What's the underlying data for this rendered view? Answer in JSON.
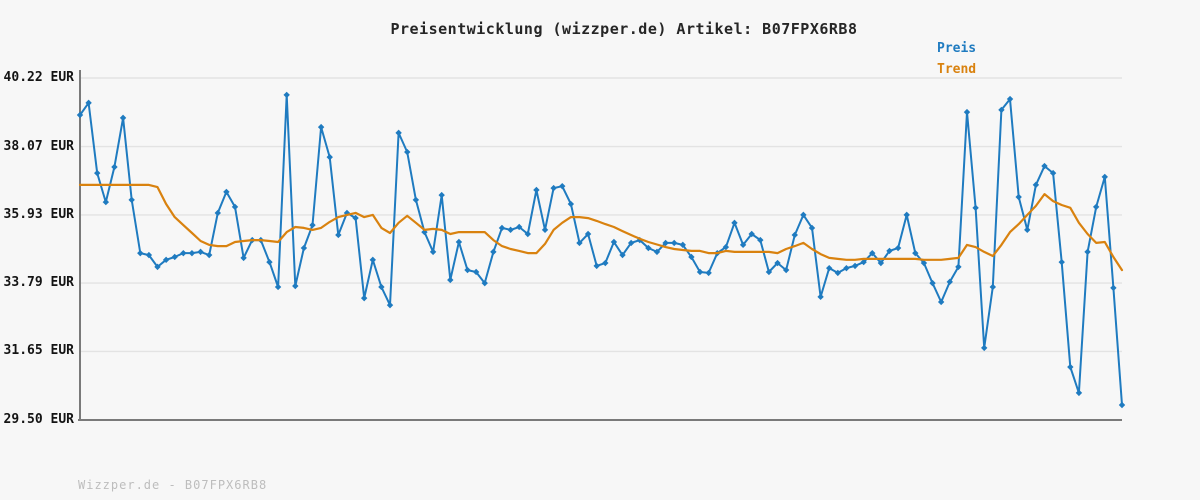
{
  "page": {
    "footer": "Wizzper.de - B07FPX6RB8"
  },
  "colors": {
    "background": "#f7f7f7",
    "price_blue": "#1f7bc0",
    "trend_orange": "#d9820f",
    "grid": "#e3e3e3",
    "axis": "#7a7a7a",
    "title_text": "#262626",
    "tick_text": "#141414",
    "footer_text": "#bdbdbd"
  },
  "chart_data": {
    "type": "line",
    "title": "Preisentwicklung (wizzper.de) Artikel: B07FPX6RB8",
    "xlabel": "",
    "ylabel": "",
    "y_unit": "EUR",
    "ylim": [
      29.5,
      40.22
    ],
    "y_tick_values": [
      40.22,
      38.07,
      35.93,
      33.79,
      31.65,
      29.5
    ],
    "y_tick_labels": [
      "40.22 EUR",
      "38.07 EUR",
      "35.93 EUR",
      "33.79 EUR",
      "31.65 EUR",
      "29.50 EUR"
    ],
    "x_tick_labels": [],
    "grid": true,
    "legend_position": "top-right",
    "series": [
      {
        "name": "Preis",
        "color": "#1f7bc0",
        "marker": "diamond",
        "values": [
          39.06,
          39.44,
          37.24,
          36.33,
          37.43,
          38.97,
          36.4,
          34.73,
          34.67,
          34.3,
          34.52,
          34.61,
          34.73,
          34.73,
          34.77,
          34.67,
          35.99,
          36.65,
          36.18,
          34.58,
          35.14,
          35.14,
          34.45,
          33.67,
          39.69,
          33.7,
          34.89,
          35.61,
          38.68,
          37.74,
          35.3,
          35.99,
          35.83,
          33.32,
          34.52,
          33.67,
          33.1,
          38.5,
          37.9,
          36.4,
          35.39,
          34.77,
          36.55,
          33.89,
          35.08,
          34.2,
          34.14,
          33.79,
          34.77,
          35.52,
          35.46,
          35.55,
          35.33,
          36.71,
          35.46,
          36.77,
          36.83,
          36.27,
          35.05,
          35.33,
          34.33,
          34.42,
          35.08,
          34.67,
          35.05,
          35.14,
          34.89,
          34.77,
          35.05,
          35.05,
          34.99,
          34.61,
          34.14,
          34.11,
          34.73,
          34.92,
          35.68,
          34.99,
          35.33,
          35.14,
          34.14,
          34.42,
          34.2,
          35.3,
          35.93,
          35.52,
          33.36,
          34.26,
          34.11,
          34.26,
          34.33,
          34.45,
          34.73,
          34.42,
          34.8,
          34.89,
          35.93,
          34.73,
          34.42,
          33.79,
          33.2,
          33.83,
          34.3,
          39.15,
          36.15,
          31.76,
          33.67,
          39.22,
          39.56,
          36.49,
          35.46,
          36.87,
          37.46,
          37.24,
          34.45,
          31.16,
          30.35,
          34.77,
          36.18,
          37.12,
          33.64,
          29.97
        ]
      },
      {
        "name": "Trend",
        "color": "#d9820f",
        "marker": "none",
        "values": [
          36.87,
          36.87,
          36.87,
          36.87,
          36.87,
          36.87,
          36.87,
          36.87,
          36.87,
          36.8,
          36.27,
          35.86,
          35.61,
          35.36,
          35.11,
          34.99,
          34.95,
          34.95,
          35.08,
          35.11,
          35.14,
          35.14,
          35.11,
          35.08,
          35.39,
          35.55,
          35.52,
          35.46,
          35.52,
          35.71,
          35.86,
          35.93,
          35.99,
          35.86,
          35.93,
          35.52,
          35.36,
          35.68,
          35.9,
          35.68,
          35.46,
          35.49,
          35.46,
          35.33,
          35.39,
          35.39,
          35.39,
          35.39,
          35.14,
          34.95,
          34.86,
          34.8,
          34.73,
          34.73,
          35.02,
          35.46,
          35.68,
          35.86,
          35.86,
          35.83,
          35.74,
          35.64,
          35.55,
          35.42,
          35.3,
          35.18,
          35.08,
          35.0,
          34.92,
          34.86,
          34.83,
          34.8,
          34.8,
          34.73,
          34.73,
          34.8,
          34.77,
          34.77,
          34.77,
          34.77,
          34.77,
          34.73,
          34.86,
          34.95,
          35.05,
          34.86,
          34.7,
          34.58,
          34.55,
          34.52,
          34.52,
          34.55,
          34.55,
          34.55,
          34.55,
          34.55,
          34.55,
          34.55,
          34.52,
          34.52,
          34.52,
          34.55,
          34.58,
          34.99,
          34.92,
          34.77,
          34.64,
          34.99,
          35.39,
          35.64,
          35.93,
          36.21,
          36.58,
          36.36,
          36.24,
          36.15,
          35.68,
          35.33,
          35.05,
          35.08,
          34.61,
          34.2
        ]
      }
    ]
  }
}
